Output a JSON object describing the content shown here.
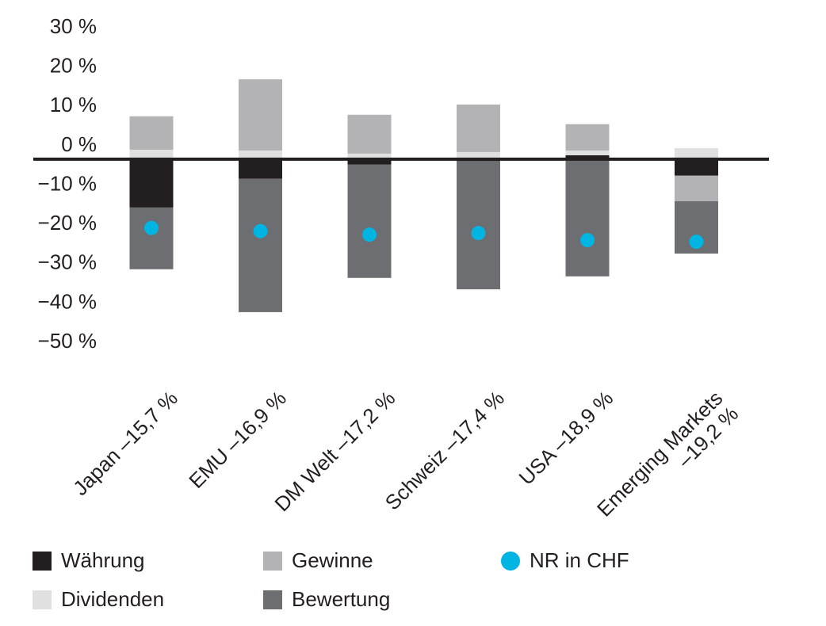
{
  "chart_data": {
    "type": "stacked_bar",
    "categories": [
      "Japan –15,7 %",
      "EMU –16,9 %",
      "DM Welt –17,2 %",
      "Schweiz –17,4 %",
      "USA –18,9 %",
      "Emerging Markets\n–19,2 %"
    ],
    "series": [
      {
        "name": "Währung",
        "color": "#231f20",
        "values": [
          -12.3,
          -5.0,
          -1.4,
          -0.5,
          1.0,
          -4.2
        ]
      },
      {
        "name": "Dividenden",
        "color": "#e0e0e0",
        "values": [
          2.4,
          2.2,
          1.4,
          1.8,
          1.2,
          2.8
        ]
      },
      {
        "name": "Gewinne",
        "color": "#b3b3b5",
        "values": [
          8.5,
          18.1,
          9.9,
          12.1,
          6.7,
          -6.5
        ]
      },
      {
        "name": "Bewertung",
        "color": "#6d6e71",
        "values": [
          -15.7,
          -33.9,
          -28.8,
          -32.6,
          -29.8,
          -13.3
        ]
      },
      {
        "name": "NR in CHF",
        "color": "#00b5e2",
        "type": "scatter",
        "values": [
          -17.5,
          -18.3,
          -19.2,
          -18.8,
          -20.6,
          -21.0
        ]
      }
    ],
    "ylim": [
      -50,
      30
    ],
    "yticks": [
      {
        "value": 30,
        "label": "30 %"
      },
      {
        "value": 20,
        "label": "20 %"
      },
      {
        "value": 10,
        "label": "10 %"
      },
      {
        "value": 0,
        "label": "0 %"
      },
      {
        "value": -10,
        "label": "−10 %"
      },
      {
        "value": -20,
        "label": "−20 %"
      },
      {
        "value": -30,
        "label": "−30 %"
      },
      {
        "value": -40,
        "label": "−40 %"
      },
      {
        "value": -50,
        "label": "−50 %"
      }
    ],
    "legend": "bottom"
  }
}
